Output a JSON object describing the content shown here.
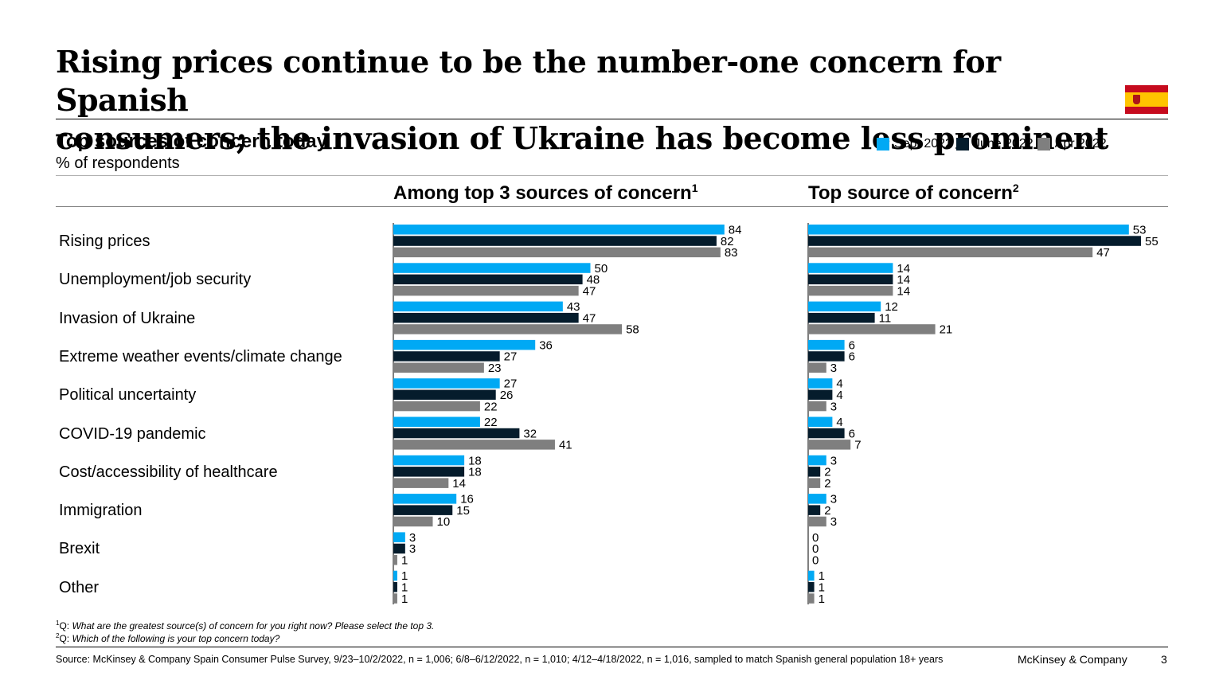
{
  "title_line1": "Rising prices continue to be the number-one concern for Spanish",
  "title_line2": "consumers; the invasion of Ukraine has become less prominent",
  "subtitle": "Top sources of concern today",
  "unit": "% of respondents",
  "colors": {
    "sept": "#00a9f4",
    "june": "#051c2c",
    "apr": "#7f7f7f",
    "flag_red": "#c60b1e",
    "flag_yellow": "#ffc400"
  },
  "legend": [
    {
      "label": "Sept 2022",
      "color": "#00a9f4"
    },
    {
      "label": "June 2022",
      "color": "#051c2c"
    },
    {
      "label": "Apr 2022",
      "color": "#7f7f7f"
    }
  ],
  "chart_data": [
    {
      "type": "bar",
      "orientation": "horizontal",
      "title": "Among top 3 sources of concern",
      "title_note": "1",
      "categories": [
        "Rising prices",
        "Unemployment/job security",
        "Invasion of Ukraine",
        "Extreme weather events/climate change",
        "Political uncertainty",
        "COVID-19 pandemic",
        "Cost/accessibility of healthcare",
        "Immigration",
        "Brexit",
        "Other"
      ],
      "series": [
        {
          "name": "Sept 2022",
          "values": [
            84,
            50,
            43,
            36,
            27,
            22,
            18,
            16,
            3,
            1
          ]
        },
        {
          "name": "June 2022",
          "values": [
            82,
            48,
            47,
            27,
            26,
            32,
            18,
            15,
            3,
            1
          ]
        },
        {
          "name": "Apr 2022",
          "values": [
            83,
            47,
            58,
            23,
            22,
            41,
            14,
            10,
            1,
            1
          ]
        }
      ],
      "ylabel": "% of respondents",
      "grid": false,
      "legend_position": "top-right"
    },
    {
      "type": "bar",
      "orientation": "horizontal",
      "title": "Top source of concern",
      "title_note": "2",
      "categories": [
        "Rising prices",
        "Unemployment/job security",
        "Invasion of Ukraine",
        "Extreme weather events/climate change",
        "Political uncertainty",
        "COVID-19 pandemic",
        "Cost/accessibility of healthcare",
        "Immigration",
        "Brexit",
        "Other"
      ],
      "series": [
        {
          "name": "Sept 2022",
          "values": [
            53,
            14,
            12,
            6,
            4,
            4,
            3,
            3,
            0,
            1
          ]
        },
        {
          "name": "June 2022",
          "values": [
            55,
            14,
            11,
            6,
            4,
            6,
            2,
            2,
            0,
            1
          ]
        },
        {
          "name": "Apr 2022",
          "values": [
            47,
            14,
            21,
            3,
            3,
            7,
            2,
            3,
            0,
            1
          ]
        }
      ],
      "ylabel": "% of respondents",
      "grid": false,
      "legend_position": "top-right"
    }
  ],
  "footnotes": [
    {
      "mark": "1",
      "prefix": "Q: ",
      "text": "What are the greatest source(s) of concern for you right now? Please select the top 3."
    },
    {
      "mark": "2",
      "prefix": "Q: ",
      "text": "Which of the following is your top concern today?"
    }
  ],
  "source": "Source: McKinsey & Company Spain Consumer Pulse Survey, 9/23–10/2/2022, n = 1,006; 6/8–6/12/2022, n = 1,010; 4/12–4/18/2022, n = 1,016, sampled to match Spanish general population 18+ years",
  "brand": "McKinsey & Company",
  "page_number": "3"
}
